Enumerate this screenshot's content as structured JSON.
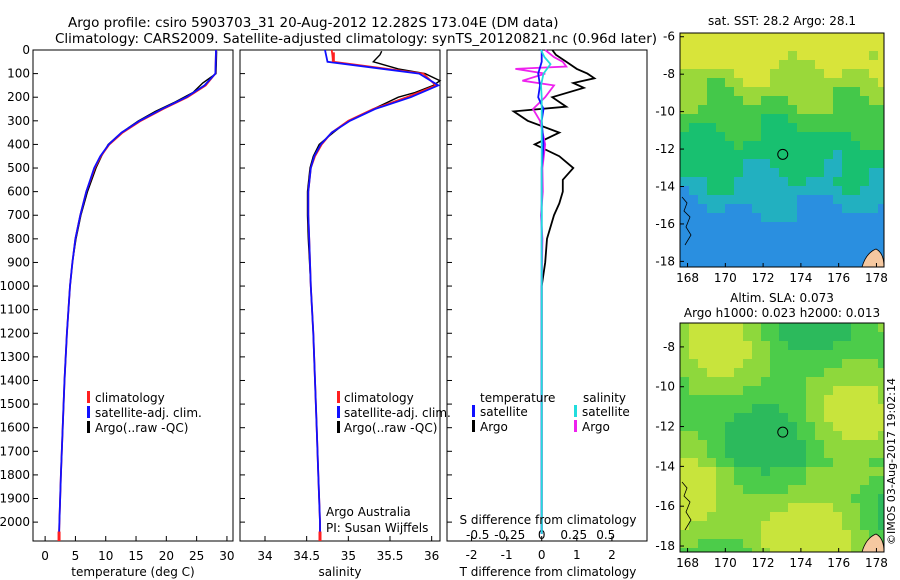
{
  "header": {
    "line1": "Argo profile: csiro 5903703_31 20-Aug-2012 12.282S 173.04E (DM data)",
    "line2": "Climatology: CARS2009. Satellite-adjusted climatology: synTS_20120821.nc (0.96d later)"
  },
  "colors": {
    "climatology": "#ff2020",
    "satellite": "#1010ff",
    "argo": "#000000",
    "argo_salinity_diff": "#ee22ee",
    "satellite_salinity_diff": "#22dddd"
  },
  "side_text": "©IMOS 03-Aug-2017 19:02:14",
  "chart_data": [
    {
      "type": "line",
      "xlabel": "temperature (deg C)",
      "ylabel": "",
      "xlim": [
        -2,
        31
      ],
      "ylim": [
        2080,
        0
      ],
      "xticks": [
        "0",
        "5",
        "10",
        "15",
        "20",
        "25",
        "30"
      ],
      "yticks": [
        "0",
        "100",
        "200",
        "300",
        "400",
        "500",
        "600",
        "700",
        "800",
        "900",
        "1000",
        "1100",
        "1200",
        "1300",
        "1400",
        "1500",
        "1600",
        "1700",
        "1800",
        "1900",
        "2000"
      ],
      "legend": [
        "climatology",
        "satellite-adj. clim.",
        "Argo(..raw -QC)"
      ],
      "legend_position": "bottom-center",
      "series": [
        {
          "name": "climatology",
          "depth": [
            0,
            100,
            150,
            200,
            250,
            300,
            350,
            400,
            450,
            500,
            600,
            700,
            800,
            900,
            1000,
            1200,
            1400,
            1600,
            1800,
            2000,
            2050
          ],
          "values": [
            28.2,
            28.1,
            26.5,
            23.5,
            19.5,
            15.8,
            12.8,
            10.6,
            9.2,
            8.2,
            6.8,
            5.8,
            5.0,
            4.5,
            4.1,
            3.6,
            3.2,
            2.9,
            2.6,
            2.35,
            2.3
          ]
        },
        {
          "name": "satellite-adj. clim.",
          "depth": [
            0,
            100,
            150,
            200,
            250,
            300,
            350,
            400,
            450,
            500,
            600,
            700,
            800,
            900,
            1000,
            1200,
            1400,
            1600,
            1800,
            2000,
            2050
          ],
          "values": [
            28.2,
            28.1,
            26.3,
            23.3,
            19.3,
            15.6,
            12.6,
            10.5,
            9.1,
            8.1,
            6.8,
            5.8,
            5.0,
            4.5,
            4.1,
            3.6,
            3.2,
            2.9,
            2.6,
            2.35,
            2.3
          ]
        },
        {
          "name": "Argo(..raw -QC)",
          "depth": [
            5,
            100,
            140,
            180,
            220,
            260,
            300,
            350,
            400,
            450,
            500,
            600,
            700,
            800,
            900,
            1000,
            1200,
            1400,
            1600,
            1800,
            2000,
            2040
          ],
          "values": [
            28.3,
            28.2,
            26.0,
            24.4,
            21.5,
            18.2,
            15.4,
            12.6,
            10.4,
            9.3,
            8.4,
            7.0,
            5.9,
            5.1,
            4.5,
            4.1,
            3.6,
            3.2,
            2.9,
            2.6,
            2.35,
            2.3
          ]
        }
      ]
    },
    {
      "type": "line",
      "xlabel": "salinity",
      "ylabel": "",
      "xlim": [
        33.7,
        36.1
      ],
      "ylim": [
        2080,
        0
      ],
      "xticks": [
        "34",
        "34.5",
        "35",
        "35.5",
        "36"
      ],
      "legend": [
        "climatology",
        "satellite-adj. clim.",
        "Argo(..raw -QC)"
      ],
      "legend_position": "bottom-center",
      "annotation": [
        "Argo Australia",
        "PI: Susan Wijffels"
      ],
      "series": [
        {
          "name": "climatology",
          "depth": [
            0,
            50,
            100,
            150,
            200,
            250,
            300,
            350,
            400,
            450,
            500,
            600,
            700,
            800,
            1000,
            1200,
            1400,
            1600,
            1800,
            2000,
            2050
          ],
          "values": [
            34.8,
            34.82,
            35.9,
            36.05,
            35.7,
            35.3,
            35.0,
            34.8,
            34.68,
            34.6,
            34.55,
            34.52,
            34.52,
            34.53,
            34.55,
            34.58,
            34.6,
            34.62,
            34.64,
            34.66,
            34.66
          ]
        },
        {
          "name": "satellite-adj. clim.",
          "depth": [
            0,
            50,
            100,
            150,
            200,
            250,
            300,
            350,
            400,
            450,
            500,
            600,
            700,
            800,
            1000,
            1200,
            1400,
            1600,
            1800,
            2000,
            2050
          ],
          "values": [
            34.72,
            34.75,
            35.85,
            36.08,
            35.75,
            35.32,
            35.02,
            34.8,
            34.67,
            34.59,
            34.55,
            34.52,
            34.52,
            34.53,
            34.55,
            34.58,
            34.6,
            34.62,
            34.64,
            34.66,
            34.66
          ]
        },
        {
          "name": "Argo(..raw -QC)",
          "depth": [
            5,
            20,
            50,
            80,
            100,
            130,
            150,
            180,
            200,
            250,
            300,
            350,
            400,
            450,
            500,
            600,
            700,
            800,
            1000,
            1200,
            1400,
            1600,
            1800,
            2000,
            2040
          ],
          "values": [
            35.4,
            35.38,
            35.3,
            35.6,
            35.92,
            36.1,
            36.02,
            35.8,
            35.6,
            35.3,
            35.0,
            34.82,
            34.65,
            34.58,
            34.54,
            34.51,
            34.51,
            34.52,
            34.55,
            34.58,
            34.6,
            34.62,
            34.64,
            34.66,
            34.66
          ]
        }
      ]
    },
    {
      "type": "line",
      "xlabel": "T difference from climatology",
      "xlabel_top": "S difference from climatology",
      "xlim_T": [
        -2.7,
        3.0
      ],
      "xticks_T": [
        "-2",
        "-1",
        "0",
        "1",
        "2"
      ],
      "xticks_S": [
        "-0.5",
        "-0.25",
        "0",
        "0.25",
        "0.5"
      ],
      "ylim": [
        2080,
        0
      ],
      "legend_title": [
        "temperature",
        "salinity"
      ],
      "legend": [
        "satellite",
        "Argo",
        "satellite",
        "Argo"
      ],
      "legend_position": "bottom",
      "series": [
        {
          "name": "satellite",
          "depth": [
            0,
            50,
            100,
            150,
            200,
            250,
            300,
            400,
            500,
            600,
            800,
            1000,
            1500,
            2000,
            2050
          ],
          "values": [
            0,
            0,
            -0.1,
            -0.05,
            -0.1,
            0.05,
            0,
            0.05,
            0,
            0,
            0,
            0,
            0,
            0,
            0
          ]
        },
        {
          "name": "Argo",
          "depth": [
            0,
            20,
            50,
            80,
            100,
            120,
            140,
            160,
            200,
            240,
            260,
            300,
            350,
            400,
            450,
            500,
            550,
            600,
            650,
            700,
            800,
            900,
            1000,
            1400,
            2000,
            2050
          ],
          "values": [
            0.3,
            0.4,
            0.7,
            1.0,
            1.3,
            1.5,
            0.9,
            1.2,
            0.3,
            0.7,
            -0.8,
            -0.4,
            0.5,
            -0.2,
            0.5,
            0.9,
            0.6,
            0.6,
            0.5,
            0.35,
            0.15,
            0.1,
            0,
            0,
            0,
            0
          ]
        },
        {
          "name": "satellite",
          "depth": [
            0,
            30,
            60,
            100,
            150,
            200,
            300,
            500,
            800,
            1200,
            1600,
            2000,
            2050
          ],
          "values": [
            -0.02,
            0.08,
            0.25,
            0.05,
            -0.02,
            0,
            0,
            0,
            0,
            0,
            0,
            0,
            0
          ]
        },
        {
          "name": "Argo",
          "depth": [
            0,
            30,
            50,
            70,
            80,
            100,
            130,
            150,
            200,
            250,
            300,
            400,
            500,
            600,
            700,
            800,
            1000,
            2000,
            2050
          ],
          "values": [
            0.1,
            0.35,
            0.6,
            0.7,
            -0.75,
            0.1,
            -0.55,
            0.35,
            0.1,
            -0.25,
            -0.05,
            0.1,
            0.02,
            0.03,
            -0.02,
            0.02,
            0,
            0,
            0
          ]
        }
      ]
    },
    {
      "type": "heatmap",
      "title": "sat. SST: 28.2 Argo: 28.1",
      "xlim": [
        167.6,
        178.4
      ],
      "ylim": [
        -18.3,
        -5.8
      ],
      "xticks": [
        "168",
        "170",
        "172",
        "174",
        "176",
        "178"
      ],
      "yticks": [
        "-6",
        "-8",
        "-10",
        "-12",
        "-14",
        "-16",
        "-18"
      ],
      "marker": {
        "lon": 173.04,
        "lat": -12.282
      }
    },
    {
      "type": "heatmap",
      "title": "Altim. SLA: 0.073",
      "subtitle": "Argo h1000: 0.023 h2000: 0.013",
      "xlim": [
        167.6,
        178.4
      ],
      "ylim": [
        -18.3,
        -6.8
      ],
      "xticks": [
        "168",
        "170",
        "172",
        "174",
        "176",
        "178"
      ],
      "yticks": [
        "-8",
        "-10",
        "-12",
        "-14",
        "-16",
        "-18"
      ],
      "marker": {
        "lon": 173.04,
        "lat": -12.282
      }
    }
  ]
}
